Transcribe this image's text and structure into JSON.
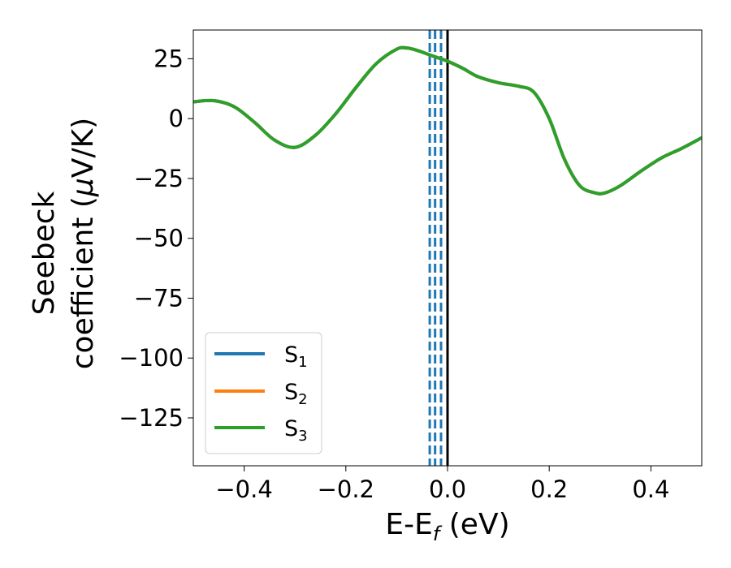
{
  "chart_data": {
    "type": "line",
    "xlabel": {
      "main": "E-E",
      "sub": "f",
      "tail": " (eV)"
    },
    "ylabel": {
      "line1": "Seebeck",
      "line2_main": "coefficient  (",
      "mu": "μ",
      "line2_tail": "V/K)"
    },
    "xlim": [
      -0.5,
      0.5
    ],
    "ylim": [
      -145,
      37
    ],
    "xticks": [
      -0.4,
      -0.2,
      0.0,
      0.2,
      0.4
    ],
    "xtick_labels": [
      "−0.4",
      "−0.2",
      "0.0",
      "0.2",
      "0.4"
    ],
    "yticks": [
      25,
      0,
      -25,
      -50,
      -75,
      -100,
      -125
    ],
    "ytick_labels": [
      "25",
      "0",
      "−25",
      "−50",
      "−75",
      "−100",
      "−125"
    ],
    "grid": false,
    "legend_position": "lower-left",
    "legend": [
      {
        "main": "S",
        "sub": "1",
        "color": "#1f77b4"
      },
      {
        "main": "S",
        "sub": "2",
        "color": "#ff7f0e"
      },
      {
        "main": "S",
        "sub": "3",
        "color": "#2ca02c"
      }
    ],
    "x": [
      -0.5,
      -0.46,
      -0.42,
      -0.38,
      -0.34,
      -0.3,
      -0.26,
      -0.22,
      -0.18,
      -0.14,
      -0.1,
      -0.08,
      -0.06,
      -0.04,
      -0.02,
      0.0,
      0.03,
      0.06,
      0.1,
      0.14,
      0.17,
      0.2,
      0.23,
      0.26,
      0.29,
      0.31,
      0.34,
      0.38,
      0.42,
      0.46,
      0.5
    ],
    "series": [
      {
        "name": "S1",
        "color": "#1f77b4",
        "values": [
          7,
          7.5,
          5,
          -1.5,
          -9,
          -12,
          -7,
          2,
          13,
          23,
          29,
          29.5,
          28.5,
          27,
          25.5,
          24,
          21,
          17.5,
          15,
          13.5,
          11,
          0,
          -17,
          -28,
          -31,
          -31,
          -28,
          -22,
          -16.5,
          -12.5,
          -8
        ]
      },
      {
        "name": "S2",
        "color": "#ff7f0e",
        "values": [
          7,
          7.5,
          5,
          -1.5,
          -9,
          -12,
          -7,
          2,
          13,
          23,
          29,
          29.5,
          28.5,
          27,
          25.5,
          24,
          21,
          17.5,
          15,
          13.5,
          11,
          0,
          -17,
          -28,
          -31,
          -31,
          -28,
          -22,
          -16.5,
          -12.5,
          -8
        ]
      },
      {
        "name": "S3",
        "color": "#2ca02c",
        "values": [
          7,
          7.5,
          5,
          -1.5,
          -9,
          -12,
          -7,
          2,
          13,
          23,
          29,
          29.5,
          28.5,
          27,
          25.5,
          24,
          21,
          17.5,
          15,
          13.5,
          11,
          0,
          -17,
          -28,
          -31,
          -31,
          -28,
          -22,
          -16.5,
          -12.5,
          -8
        ]
      }
    ],
    "vlines": [
      {
        "x": -0.035,
        "style": "dashed",
        "color": "#1f77b4"
      },
      {
        "x": -0.0245,
        "style": "dashed",
        "color": "#1f77b4"
      },
      {
        "x": -0.0128,
        "style": "dashed",
        "color": "#1f77b4"
      },
      {
        "x": 0.0,
        "style": "solid",
        "color": "#000000"
      }
    ]
  }
}
